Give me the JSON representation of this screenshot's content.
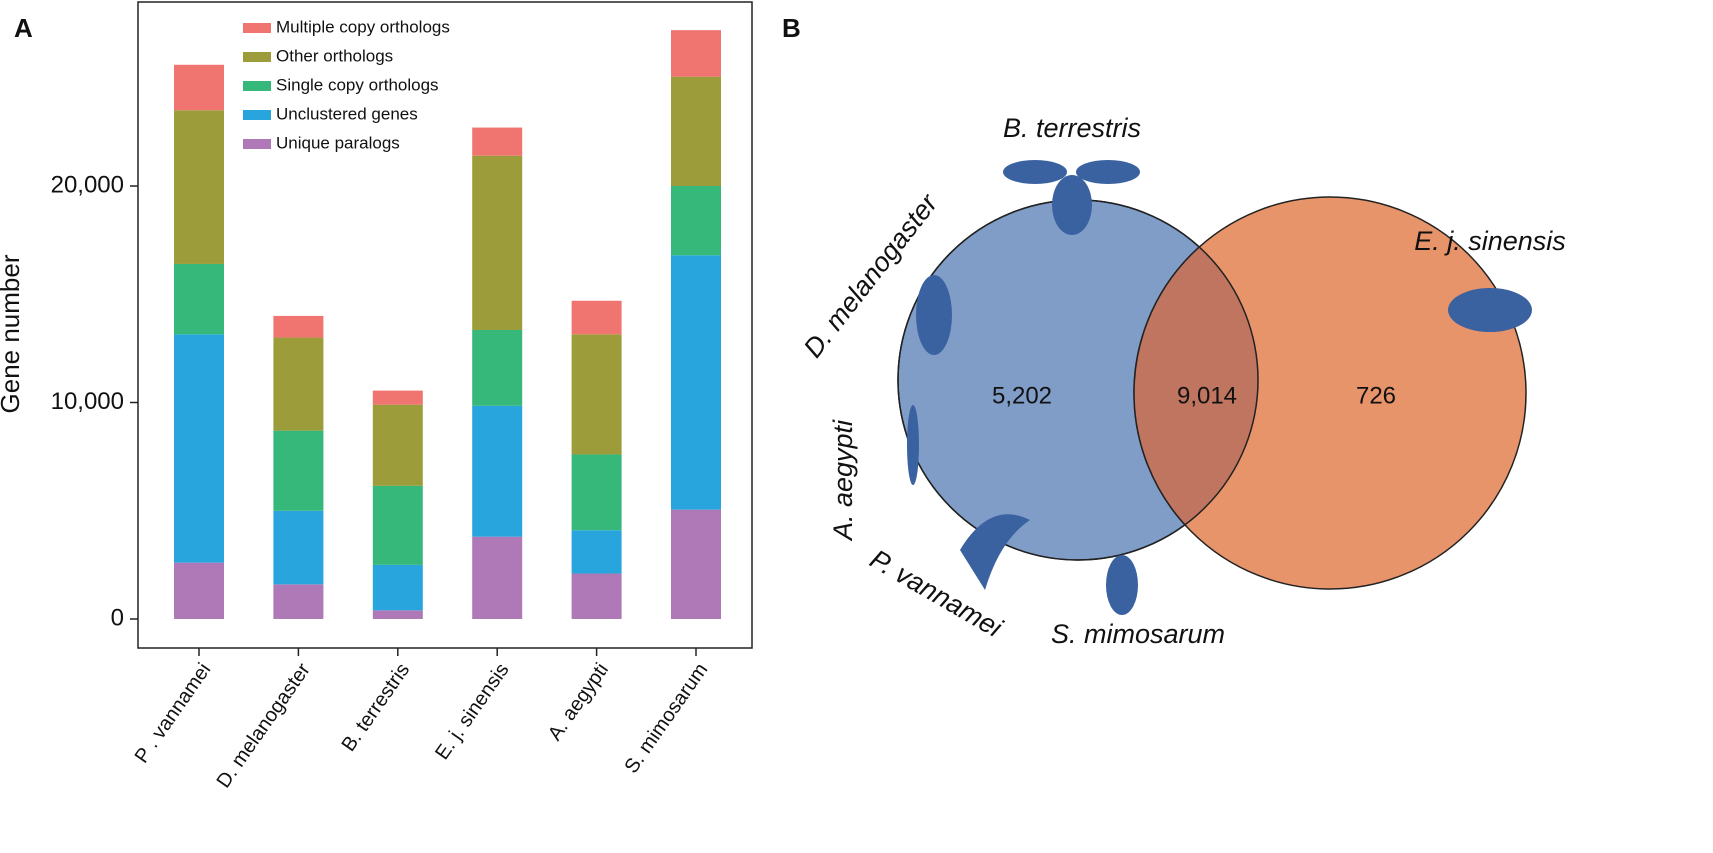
{
  "chart_data": [
    {
      "type": "bar",
      "panel": "A",
      "y_label": "Gene number",
      "categories": [
        "P . vannamei",
        "D. melanogaster",
        "B. terrestris",
        "E. j. sinensis",
        "A. aegypti",
        "S. mimosarum"
      ],
      "series": [
        {
          "name": "Multiple copy orthologs",
          "color": "#f07470",
          "values": [
            2100,
            1000,
            650,
            1300,
            1550,
            2150
          ]
        },
        {
          "name": "Other orthologs",
          "color": "#9c9c3a",
          "values": [
            7100,
            4300,
            3750,
            8050,
            5550,
            5050
          ]
        },
        {
          "name": "Single copy orthologs",
          "color": "#35b87a",
          "values": [
            3250,
            3700,
            3650,
            3500,
            3500,
            3200
          ]
        },
        {
          "name": "Unclustered genes",
          "color": "#29a5de",
          "values": [
            10550,
            3400,
            2100,
            6050,
            2000,
            11750
          ]
        },
        {
          "name": "Unique paralogs",
          "color": "#ae79b6",
          "values": [
            2600,
            1600,
            400,
            3800,
            2100,
            5050
          ]
        }
      ],
      "stacked": true,
      "ylim": [
        -1340,
        28500
      ],
      "yticks": [
        0,
        {
          "value": 10000,
          "label": "10,000"
        },
        {
          "value": 20000,
          "label": "20,000"
        }
      ],
      "legend": "top-left"
    },
    {
      "type": "venn",
      "panel": "B",
      "sets": [
        {
          "name": "B. terrestris"
        },
        {
          "name": "D. melanogaster"
        },
        {
          "name": "A. aegypti"
        },
        {
          "name": "P. vannamei"
        },
        {
          "name": "S. mimosarum"
        },
        {
          "name": "E. j. sinensis"
        }
      ],
      "colors": [
        "#7f9dc7",
        "#e8946a",
        "#bf7560"
      ],
      "values": [
        5202,
        9014,
        726
      ],
      "value_labels": [
        "5,202",
        "9,014",
        "726"
      ]
    }
  ]
}
